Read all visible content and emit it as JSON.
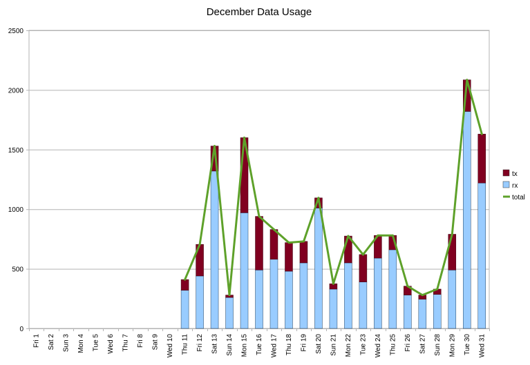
{
  "chart_data": {
    "type": "bar",
    "title": "December Data Usage",
    "xlabel": "",
    "ylabel": "",
    "ylim": [
      0,
      2500
    ],
    "yticks": [
      0,
      500,
      1000,
      1500,
      2000,
      2500
    ],
    "grid": true,
    "legend_position": "right",
    "categories": [
      "Fri 1",
      "Sat 2",
      "Sun 3",
      "Mon 4",
      "Tue 5",
      "Wed 6",
      "Thu 7",
      "Fri 8",
      "Sat 9",
      "Wed 10",
      "Thu 11",
      "Fri 12",
      "Sat 13",
      "Sun 14",
      "Mon 15",
      "Tue 16",
      "Wed 17",
      "Thu 18",
      "Fri 19",
      "Sat 20",
      "Sun 21",
      "Mon 22",
      "Tue 23",
      "Wed 24",
      "Thu 25",
      "Fri 26",
      "Sat 27",
      "Sun 28",
      "Mon 29",
      "Tue 30",
      "Wed 31"
    ],
    "series": [
      {
        "name": "rx",
        "kind": "stacked-bar",
        "color": "#99ccff",
        "values": [
          0,
          0,
          0,
          0,
          0,
          0,
          0,
          0,
          0,
          0,
          320,
          440,
          1320,
          260,
          970,
          490,
          580,
          480,
          550,
          1010,
          330,
          550,
          390,
          590,
          660,
          280,
          245,
          285,
          490,
          1820,
          1220
        ]
      },
      {
        "name": "tx",
        "kind": "stacked-bar",
        "color": "#800020",
        "values": [
          0,
          0,
          0,
          0,
          0,
          0,
          0,
          0,
          0,
          0,
          90,
          265,
          210,
          20,
          630,
          450,
          250,
          240,
          180,
          85,
          45,
          225,
          230,
          190,
          120,
          75,
          35,
          45,
          300,
          265,
          410
        ]
      },
      {
        "name": "total",
        "kind": "line",
        "color": "#5ea12a",
        "values": [
          null,
          null,
          null,
          null,
          null,
          null,
          null,
          null,
          null,
          null,
          410,
          705,
          1530,
          280,
          1600,
          940,
          830,
          720,
          730,
          1095,
          375,
          775,
          620,
          780,
          780,
          355,
          280,
          330,
          790,
          2085,
          1630
        ]
      }
    ]
  }
}
